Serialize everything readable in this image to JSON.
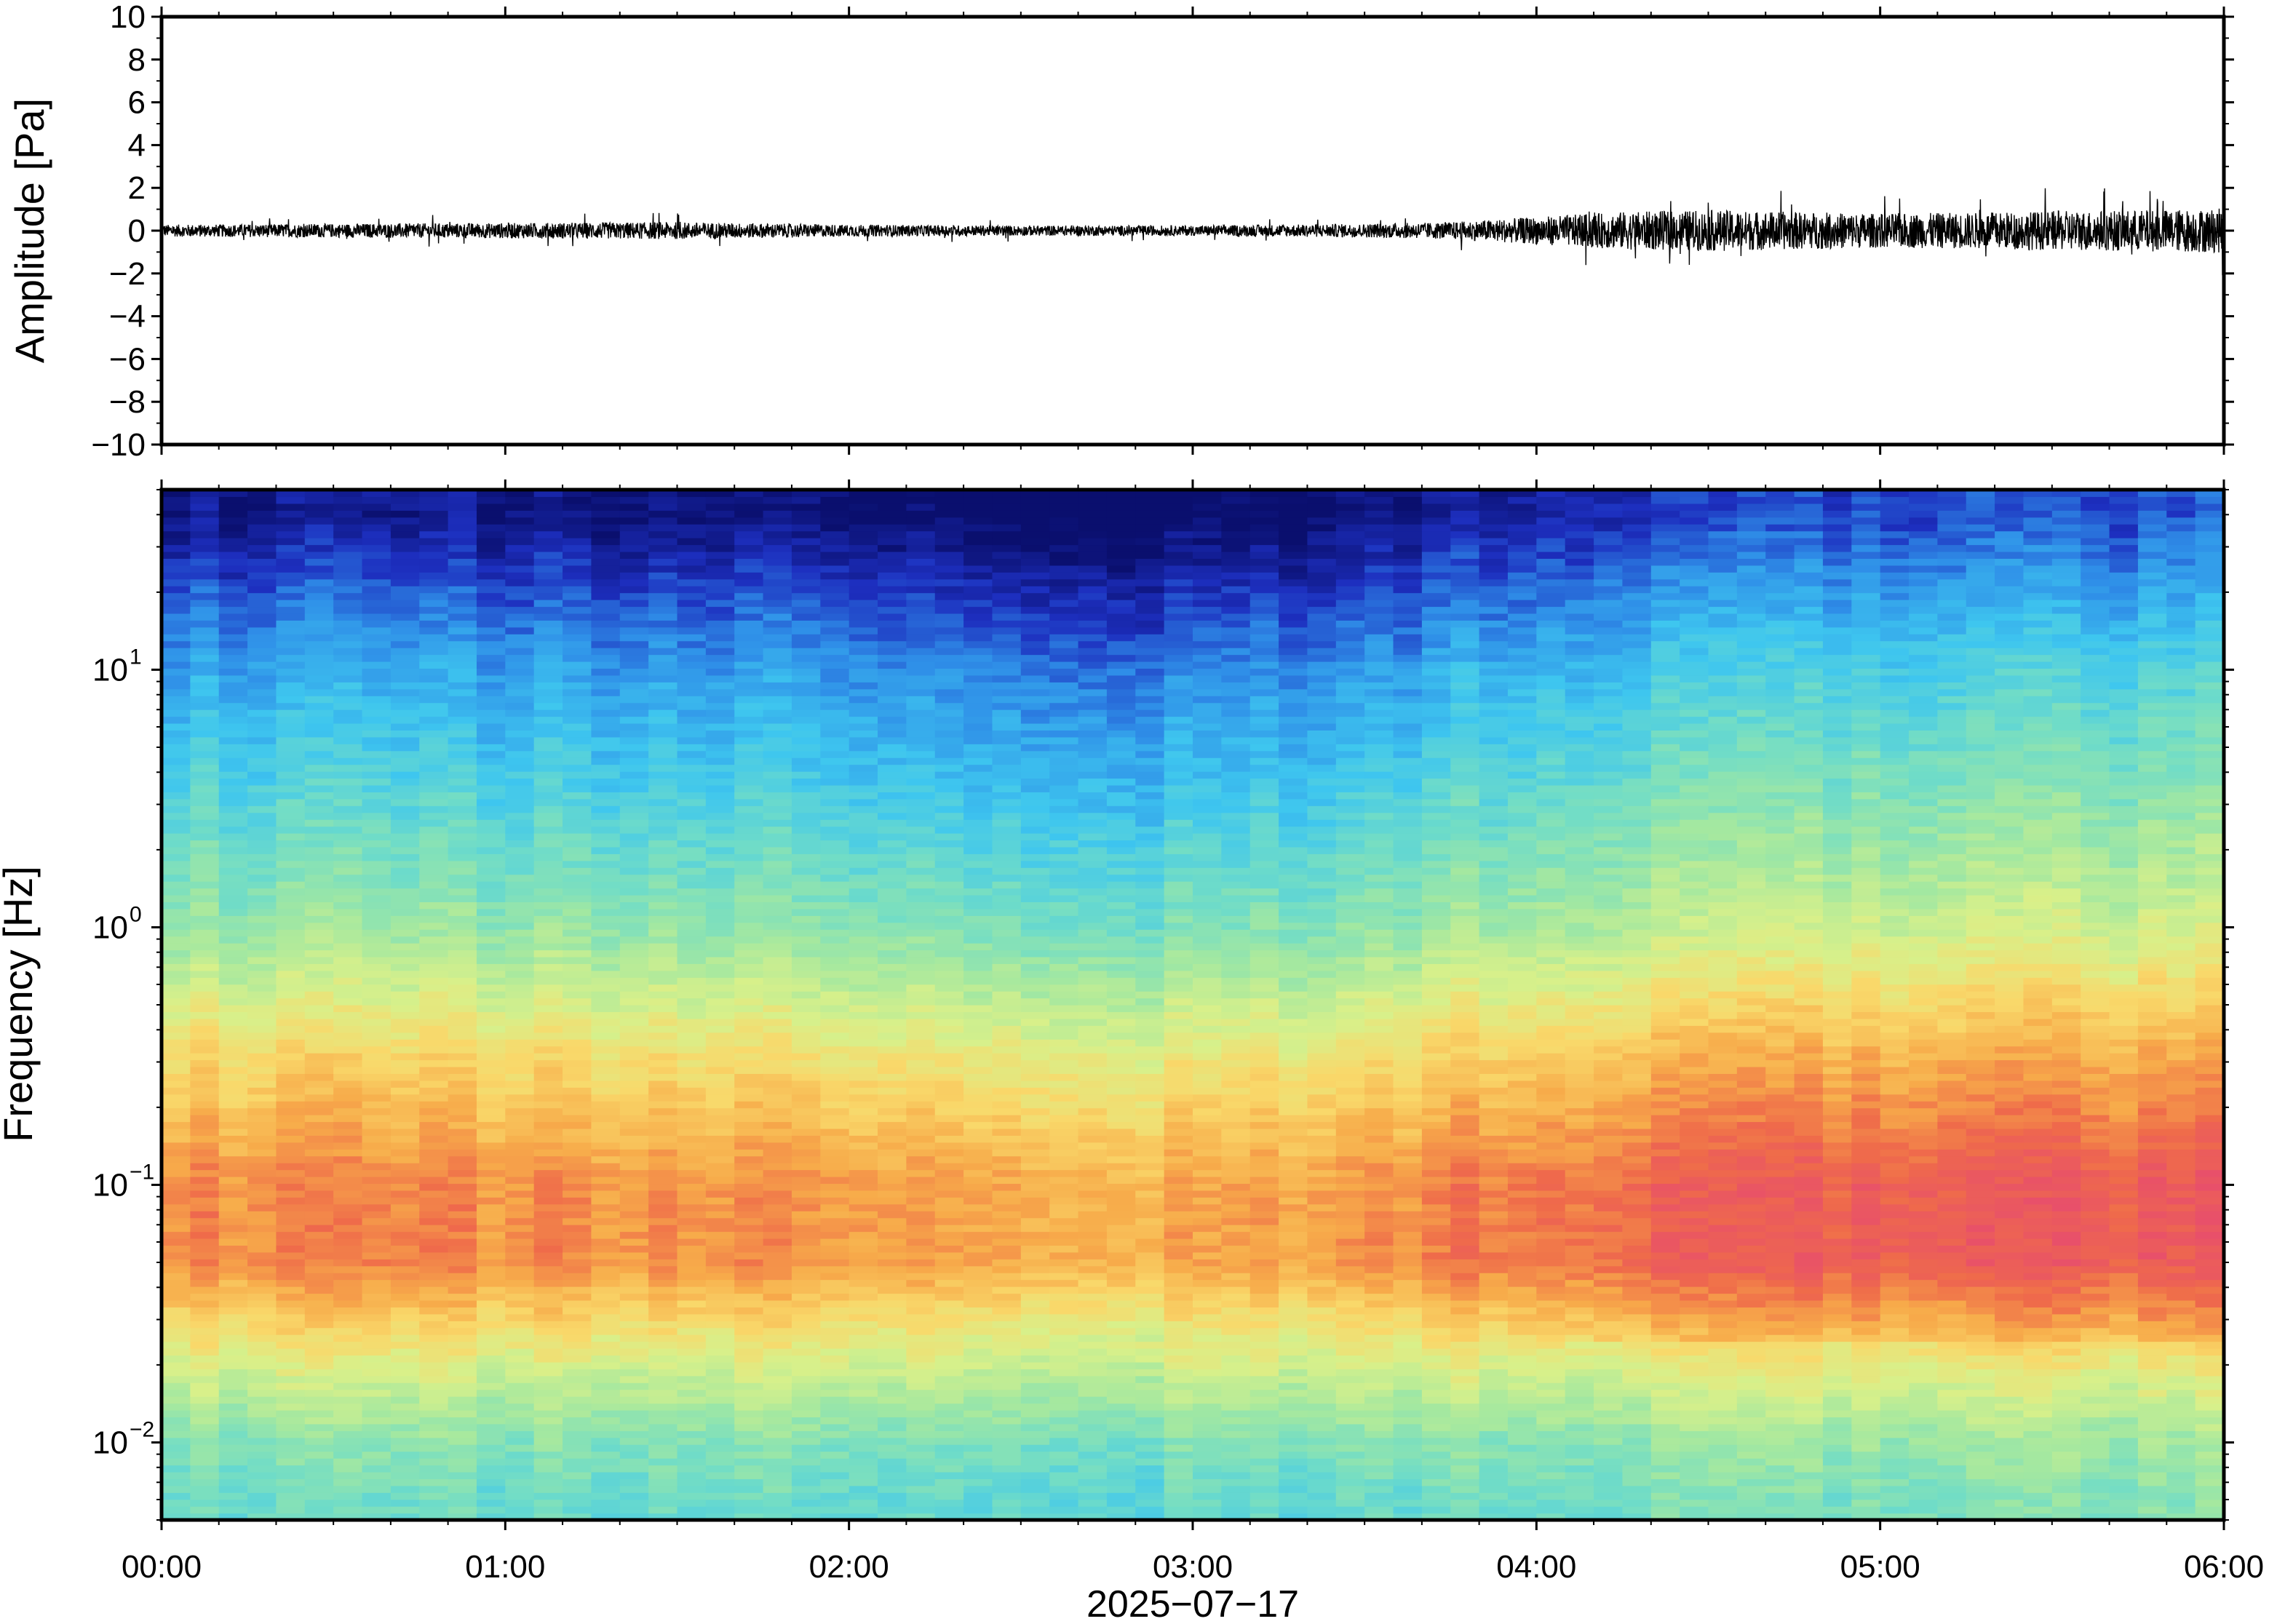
{
  "chart_data": [
    {
      "type": "line",
      "panel": "waveform",
      "title": "",
      "ylabel": "Amplitude [Pa]",
      "xlabel": "",
      "ylim": [
        -10,
        10
      ],
      "yticks": [
        10,
        8,
        6,
        4,
        2,
        0,
        -2,
        -4,
        -6,
        -8,
        -10
      ],
      "ytick_labels": [
        "10",
        "8",
        "6",
        "4",
        "2",
        "0",
        "−2",
        "−4",
        "−6",
        "−8",
        "−10"
      ],
      "xlim_hours": [
        0,
        6
      ],
      "series": [
        {
          "color": "#000000",
          "envelope_hours": [
            0,
            0.5,
            1.0,
            1.5,
            2.0,
            2.5,
            3.0,
            3.5,
            3.75,
            4.0,
            4.25,
            4.5,
            4.75,
            5.0,
            5.25,
            5.5,
            5.75,
            6.0
          ],
          "envelope_amplitude_pa": [
            0.35,
            0.4,
            0.45,
            0.5,
            0.35,
            0.3,
            0.3,
            0.4,
            0.5,
            0.8,
            1.1,
            1.2,
            1.1,
            1.0,
            1.05,
            1.15,
            1.2,
            1.3
          ]
        }
      ]
    },
    {
      "type": "heatmap",
      "panel": "spectrogram",
      "ylabel": "Frequency [Hz]",
      "xlabel": "2025−07−17",
      "y_scale": "log",
      "ylim_hz": [
        0.005,
        50
      ],
      "yticks": [
        {
          "base": "10",
          "exp": "1"
        },
        {
          "base": "10",
          "exp": "0"
        },
        {
          "base": "10",
          "exp": "−1"
        },
        {
          "base": "10",
          "exp": "−2"
        }
      ],
      "xticks": [
        "00:00",
        "01:00",
        "02:00",
        "03:00",
        "04:00",
        "05:00",
        "06:00"
      ],
      "colormap": [
        "#0a0f6e",
        "#1d2fbf",
        "#2f8fe8",
        "#3ec6ef",
        "#6fdcc8",
        "#a4e8a0",
        "#d8f08a",
        "#f9d86a",
        "#f7ab4a",
        "#ef6b4a",
        "#e8506a"
      ],
      "energy_profile_hz": [
        0.006,
        0.01,
        0.02,
        0.05,
        0.1,
        0.3,
        1,
        3,
        10,
        20,
        40
      ],
      "energy_profile_level": [
        0.4,
        0.45,
        0.6,
        0.85,
        0.85,
        0.7,
        0.48,
        0.36,
        0.24,
        0.14,
        0.03
      ],
      "time_modulation_hours": [
        0,
        1,
        2,
        2.5,
        3,
        3.5,
        4,
        4.5,
        5,
        5.5,
        6
      ],
      "time_modulation_level": [
        0,
        0,
        -0.02,
        -0.04,
        -0.06,
        -0.02,
        0.05,
        0.09,
        0.1,
        0.1,
        0.11
      ]
    }
  ]
}
